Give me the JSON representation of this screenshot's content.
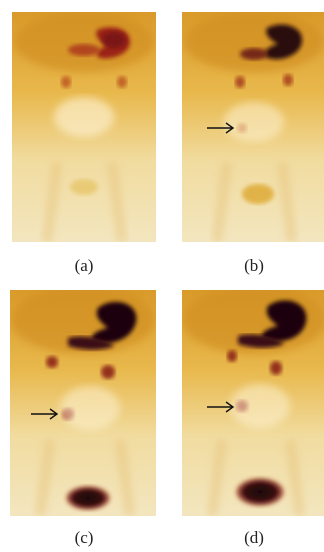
{
  "panels": [
    {
      "caption": "(a)"
    },
    {
      "caption": "(b)"
    },
    {
      "caption": "(c)"
    },
    {
      "caption": "(d)"
    }
  ],
  "colors": {
    "background_tracer": "#e6ae3a",
    "dark_uptake": "#2a0a10",
    "medium_uptake": "#8a2020",
    "paper": "#f4ecd8"
  },
  "arrow_icon": "right-arrow-icon"
}
